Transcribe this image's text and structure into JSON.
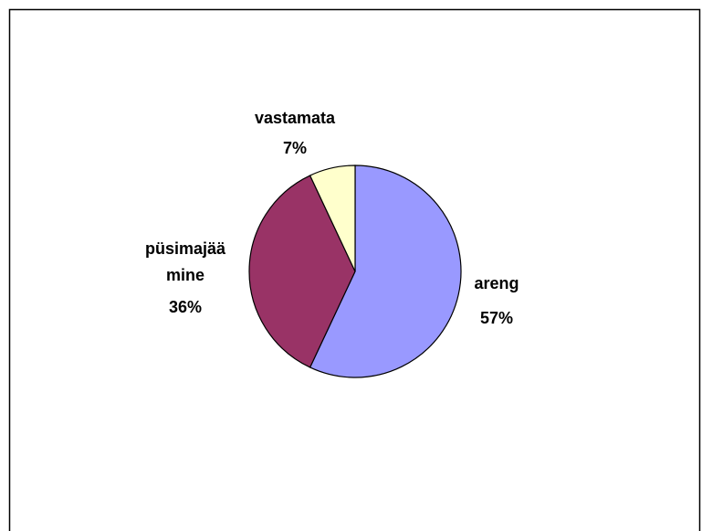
{
  "chart_data": {
    "type": "pie",
    "categories": [
      "areng",
      "püsimajää mine",
      "vastamata"
    ],
    "values": [
      57,
      36,
      7
    ],
    "value_labels": [
      "57%",
      "36%",
      "7%"
    ],
    "colors": [
      "#9999ff",
      "#993366",
      "#ffffcc"
    ]
  }
}
